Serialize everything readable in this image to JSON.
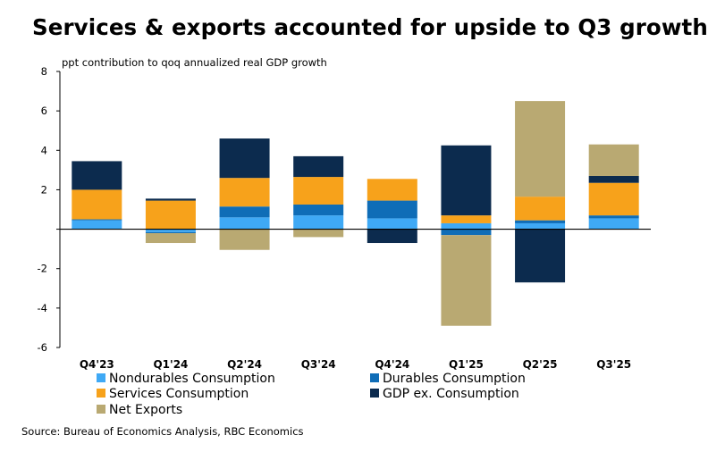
{
  "title": "Services & exports accounted for upside to Q3 growth",
  "source": "Source: Bureau of Economics Analysis, RBC Economics",
  "colors": {
    "nondurables": "#3fa9f5",
    "durables": "#0f6db7",
    "services": "#f7a21b",
    "gdp_ex": "#0c2b4e",
    "net_exports": "#b9a972",
    "axis": "#000000"
  },
  "chart_data": {
    "type": "bar",
    "stacked": true,
    "ylabel": "ppt contribution to qoq annualized real GDP growth",
    "ylim": [
      -6,
      8
    ],
    "yticks": [
      -6,
      -4,
      -2,
      0,
      2,
      4,
      6,
      8
    ],
    "ytick_labels": [
      "-6",
      "-4",
      "-2",
      "",
      "2",
      "4",
      "6",
      "8"
    ],
    "grid": false,
    "legend_position": "bottom",
    "categories": [
      "Q4'23",
      "Q1'24",
      "Q2'24",
      "Q3'24",
      "Q4'24",
      "Q1'25",
      "Q2'25",
      "Q3'25"
    ],
    "series": [
      {
        "name": "Nondurables Consumption",
        "color": "#3fa9f5",
        "values": [
          0.45,
          -0.15,
          0.6,
          0.7,
          0.55,
          0.3,
          0.3,
          0.55
        ]
      },
      {
        "name": "Durables Consumption",
        "color": "#0f6db7",
        "values": [
          0.05,
          -0.05,
          0.55,
          0.55,
          0.9,
          -0.3,
          0.15,
          0.15
        ]
      },
      {
        "name": "Services Consumption",
        "color": "#f7a21b",
        "values": [
          1.5,
          1.45,
          1.45,
          1.4,
          1.1,
          0.4,
          1.2,
          1.65
        ]
      },
      {
        "name": "GDP ex. Consumption",
        "color": "#0c2b4e",
        "values": [
          1.45,
          0.1,
          2.0,
          1.05,
          -0.7,
          3.55,
          -2.7,
          0.35
        ]
      },
      {
        "name": "Net Exports",
        "color": "#b9a972",
        "values": [
          0.0,
          -0.5,
          -1.05,
          -0.4,
          0.0,
          -4.6,
          4.85,
          1.6
        ]
      }
    ]
  }
}
